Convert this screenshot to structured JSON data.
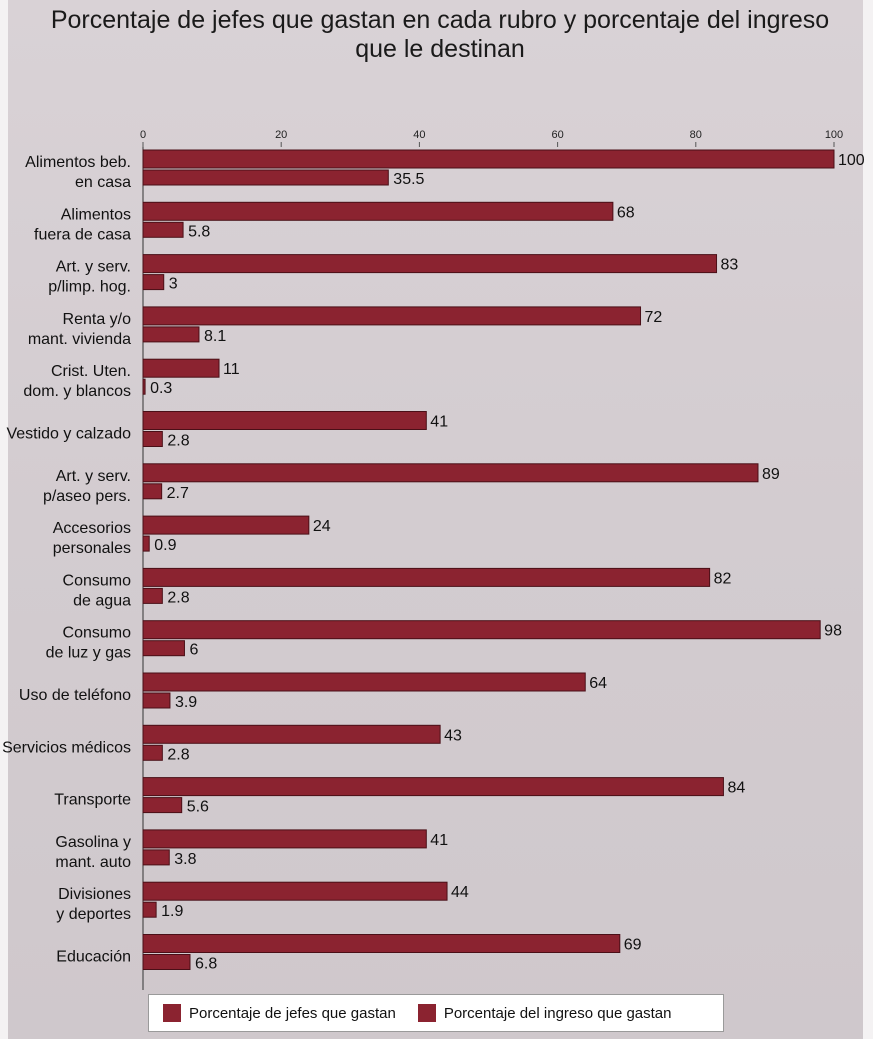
{
  "title_line1": "Porcentaje de jefes que gastan en cada rubro y porcentaje del ingreso",
  "title_line2": "que  le destinan",
  "legend": {
    "series1": "Porcentaje de jefes que gastan",
    "series2": "Porcentaje del ingreso que gastan"
  },
  "colors": {
    "bar": "#8b2330",
    "bar_border": "#4a0f17",
    "background": "#d6cfd3"
  },
  "chart_data": {
    "type": "bar",
    "orientation": "horizontal",
    "title": "Porcentaje de jefes que gastan en cada rubro y porcentaje del ingreso que  le destinan",
    "xlim": [
      0,
      100
    ],
    "xticks": [
      0,
      20,
      40,
      60,
      80,
      100
    ],
    "xlabel": "",
    "ylabel": "",
    "grid": false,
    "legend_position": "bottom",
    "categories": [
      [
        "Alimentos beb.",
        "en casa"
      ],
      [
        "Alimentos",
        "fuera de casa"
      ],
      [
        "Art. y serv.",
        "p/limp. hog."
      ],
      [
        "Renta y/o",
        "mant. vivienda"
      ],
      [
        "Crist. Uten.",
        "dom. y blancos"
      ],
      [
        "Vestido y calzado"
      ],
      [
        "Art. y serv.",
        "p/aseo pers."
      ],
      [
        "Accesorios",
        "personales"
      ],
      [
        "Consumo",
        "de agua"
      ],
      [
        "Consumo",
        "de luz y gas"
      ],
      [
        "Uso de teléfono"
      ],
      [
        "Servicios médicos"
      ],
      [
        "Transporte"
      ],
      [
        "Gasolina y",
        "mant. auto"
      ],
      [
        "Divisiones",
        "y deportes"
      ],
      [
        "Educación"
      ]
    ],
    "series": [
      {
        "name": "Porcentaje de jefes que gastan",
        "values": [
          100,
          68,
          83,
          72,
          11,
          41,
          89,
          24,
          82,
          98,
          64,
          43,
          84,
          41,
          44,
          69
        ],
        "labels": [
          "100",
          "68",
          "83",
          "72",
          "11",
          "41",
          "89",
          "24",
          "82",
          "98",
          "64",
          "43",
          "84",
          "41",
          "44",
          "69"
        ]
      },
      {
        "name": "Porcentaje del ingreso que gastan",
        "values": [
          35.5,
          5.8,
          3,
          8.1,
          0.3,
          2.8,
          2.7,
          0.9,
          2.8,
          6,
          3.9,
          2.8,
          5.6,
          3.8,
          1.9,
          6.8
        ],
        "labels": [
          "35.5",
          "5.8",
          "3",
          "8.1",
          "0.3",
          "2.8",
          "2.7",
          "0.9",
          "2.8",
          "6",
          "3.9",
          "2.8",
          "5.6",
          "3.8",
          "1.9",
          "6.8"
        ]
      }
    ]
  }
}
